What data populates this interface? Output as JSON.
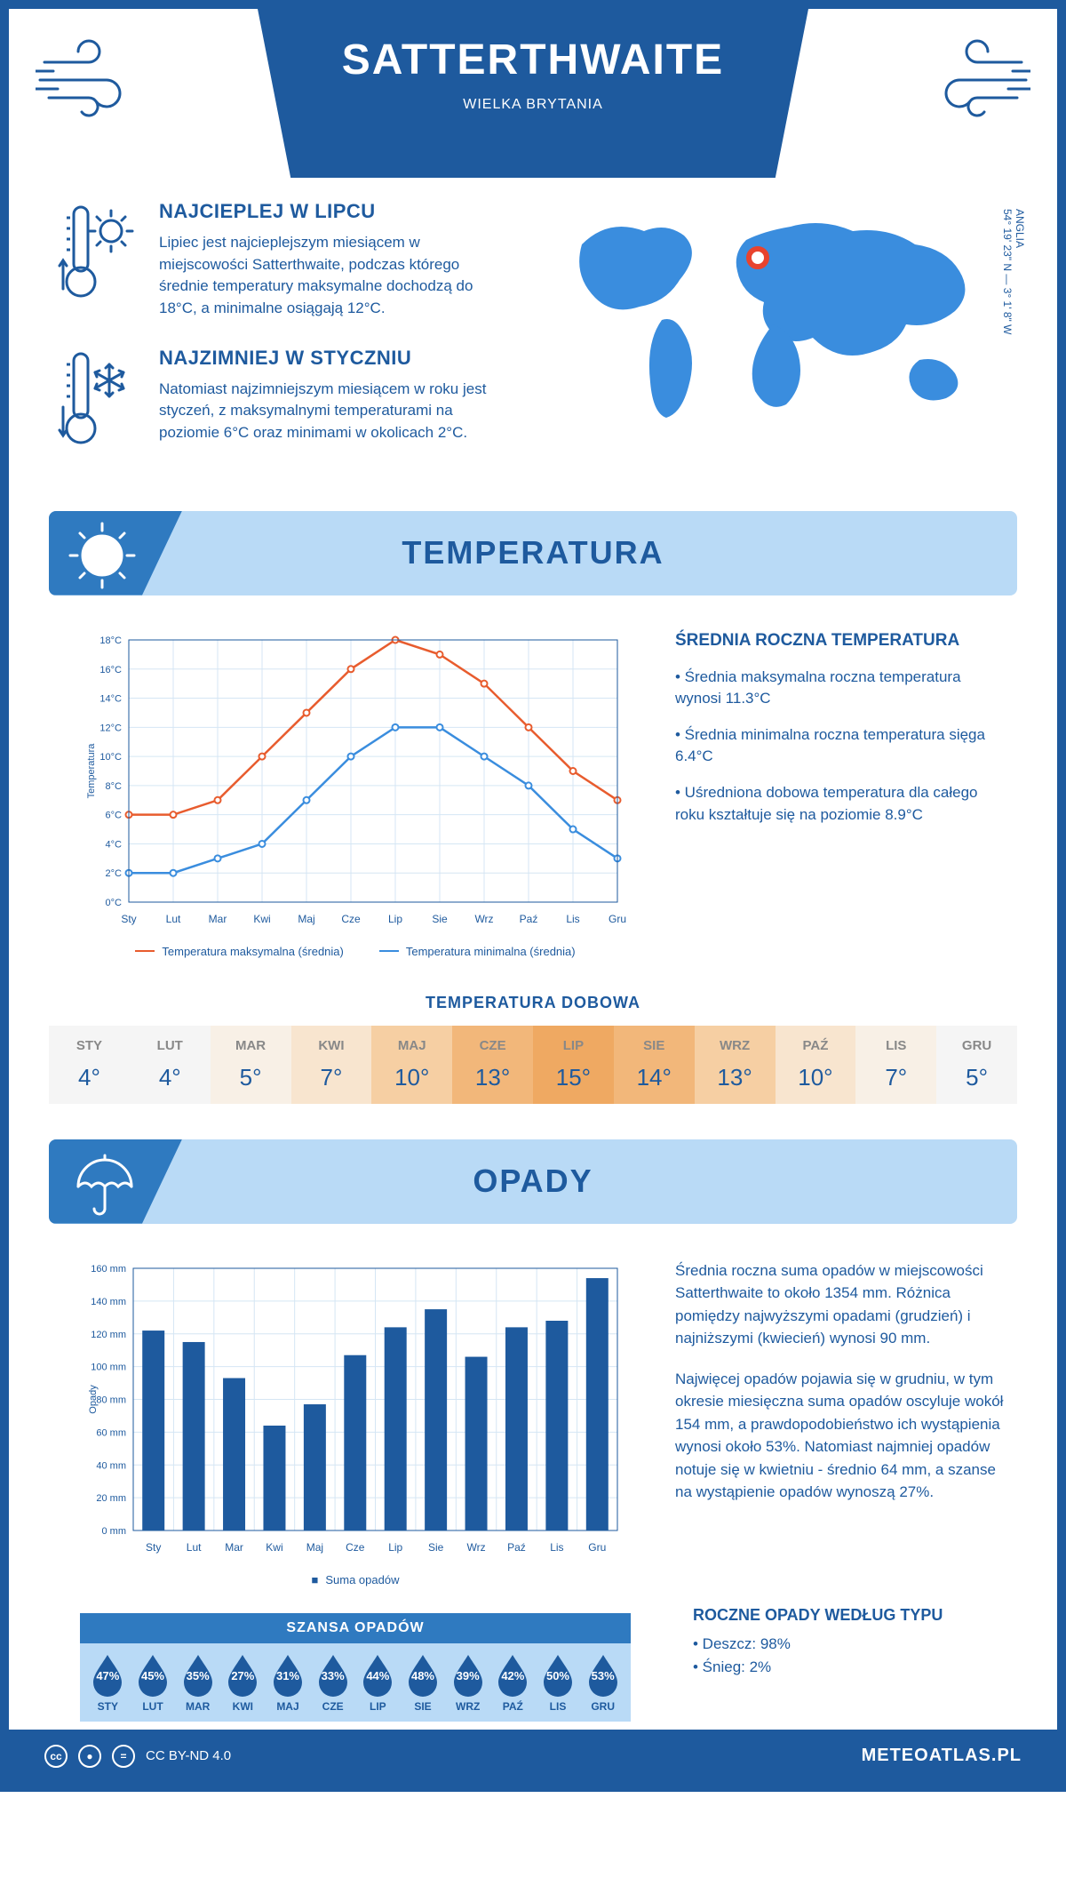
{
  "header": {
    "title": "SATTERTHWAITE",
    "subtitle": "WIELKA BRYTANIA"
  },
  "coords": {
    "line1": "54° 19' 23\" N — 3° 1' 8\" W",
    "label": "ANGLIA"
  },
  "intro": {
    "warm": {
      "title": "NAJCIEPLEJ W LIPCU",
      "text": "Lipiec jest najcieplejszym miesiącem w miejscowości Satterthwaite, podczas którego średnie temperatury maksymalne dochodzą do 18°C, a minimalne osiągają 12°C."
    },
    "cold": {
      "title": "NAJZIMNIEJ W STYCZNIU",
      "text": "Natomiast najzimniejszym miesiącem w roku jest styczeń, z maksymalnymi temperaturami na poziomie 6°C oraz minimami w okolicach 2°C."
    }
  },
  "sections": {
    "temperature_title": "TEMPERATURA",
    "precipitation_title": "OPADY"
  },
  "months": [
    "Sty",
    "Lut",
    "Mar",
    "Kwi",
    "Maj",
    "Cze",
    "Lip",
    "Sie",
    "Wrz",
    "Paź",
    "Lis",
    "Gru"
  ],
  "months_upper": [
    "STY",
    "LUT",
    "MAR",
    "KWI",
    "MAJ",
    "CZE",
    "LIP",
    "SIE",
    "WRZ",
    "PAŹ",
    "LIS",
    "GRU"
  ],
  "temperature_chart": {
    "type": "line",
    "y_label": "Temperatura",
    "y_ticks": [
      "0°C",
      "2°C",
      "4°C",
      "6°C",
      "8°C",
      "10°C",
      "12°C",
      "14°C",
      "16°C",
      "18°C"
    ],
    "ylim": [
      0,
      18
    ],
    "max_series": [
      6,
      6,
      7,
      10,
      13,
      16,
      18,
      17,
      15,
      12,
      9,
      7
    ],
    "min_series": [
      2,
      2,
      3,
      4,
      7,
      10,
      12,
      12,
      10,
      8,
      5,
      3
    ],
    "max_color": "#e85c2e",
    "min_color": "#3a8dde",
    "grid_color": "#d5e6f4",
    "legend_max": "Temperatura maksymalna (średnia)",
    "legend_min": "Temperatura minimalna (średnia)"
  },
  "temperature_info": {
    "title": "ŚREDNIA ROCZNA TEMPERATURA",
    "b1": "• Średnia maksymalna roczna temperatura wynosi 11.3°C",
    "b2": "• Średnia minimalna roczna temperatura sięga 6.4°C",
    "b3": "• Uśredniona dobowa temperatura dla całego roku kształtuje się na poziomie 8.9°C"
  },
  "daily": {
    "title": "TEMPERATURA DOBOWA",
    "values": [
      "4°",
      "4°",
      "5°",
      "7°",
      "10°",
      "13°",
      "15°",
      "14°",
      "13°",
      "10°",
      "7°",
      "5°"
    ],
    "bg_colors": [
      "#f5f5f5",
      "#f5f5f5",
      "#f8f0e6",
      "#f8e5cf",
      "#f6cfa3",
      "#f2b77a",
      "#efa962",
      "#f2b77a",
      "#f6cfa3",
      "#f8e5cf",
      "#f8f0e6",
      "#f5f5f5"
    ]
  },
  "precip_chart": {
    "type": "bar",
    "y_label": "Opady",
    "y_ticks": [
      "0 mm",
      "20 mm",
      "40 mm",
      "60 mm",
      "80 mm",
      "100 mm",
      "120 mm",
      "140 mm",
      "160 mm"
    ],
    "ylim": [
      0,
      160
    ],
    "values": [
      122,
      115,
      93,
      64,
      77,
      107,
      124,
      135,
      106,
      124,
      128,
      154
    ],
    "bar_color": "#1e5a9e",
    "grid_color": "#d5e6f4",
    "legend": "Suma opadów"
  },
  "precip_info": {
    "p1": "Średnia roczna suma opadów w miejscowości Satterthwaite to około 1354 mm. Różnica pomiędzy najwyższymi opadami (grudzień) i najniższymi (kwiecień) wynosi 90 mm.",
    "p2": "Najwięcej opadów pojawia się w grudniu, w tym okresie miesięczna suma opadów oscyluje wokół 154 mm, a prawdopodobieństwo ich wystąpienia wynosi około 53%. Natomiast najmniej opadów notuje się w kwietniu - średnio 64 mm, a szanse na wystąpienie opadów wynoszą 27%."
  },
  "chance": {
    "title": "SZANSA OPADÓW",
    "values": [
      "47%",
      "45%",
      "35%",
      "27%",
      "31%",
      "33%",
      "44%",
      "48%",
      "39%",
      "42%",
      "50%",
      "53%"
    ],
    "drop_color": "#1e5a9e"
  },
  "precip_type": {
    "title": "ROCZNE OPADY WEDŁUG TYPU",
    "rain": "• Deszcz: 98%",
    "snow": "• Śnieg: 2%"
  },
  "footer": {
    "license": "CC BY-ND 4.0",
    "brand": "METEOATLAS.PL"
  },
  "colors": {
    "brand": "#1e5a9e",
    "light": "#b9daf6",
    "mid": "#2f7ac0",
    "world": "#3a8dde"
  }
}
